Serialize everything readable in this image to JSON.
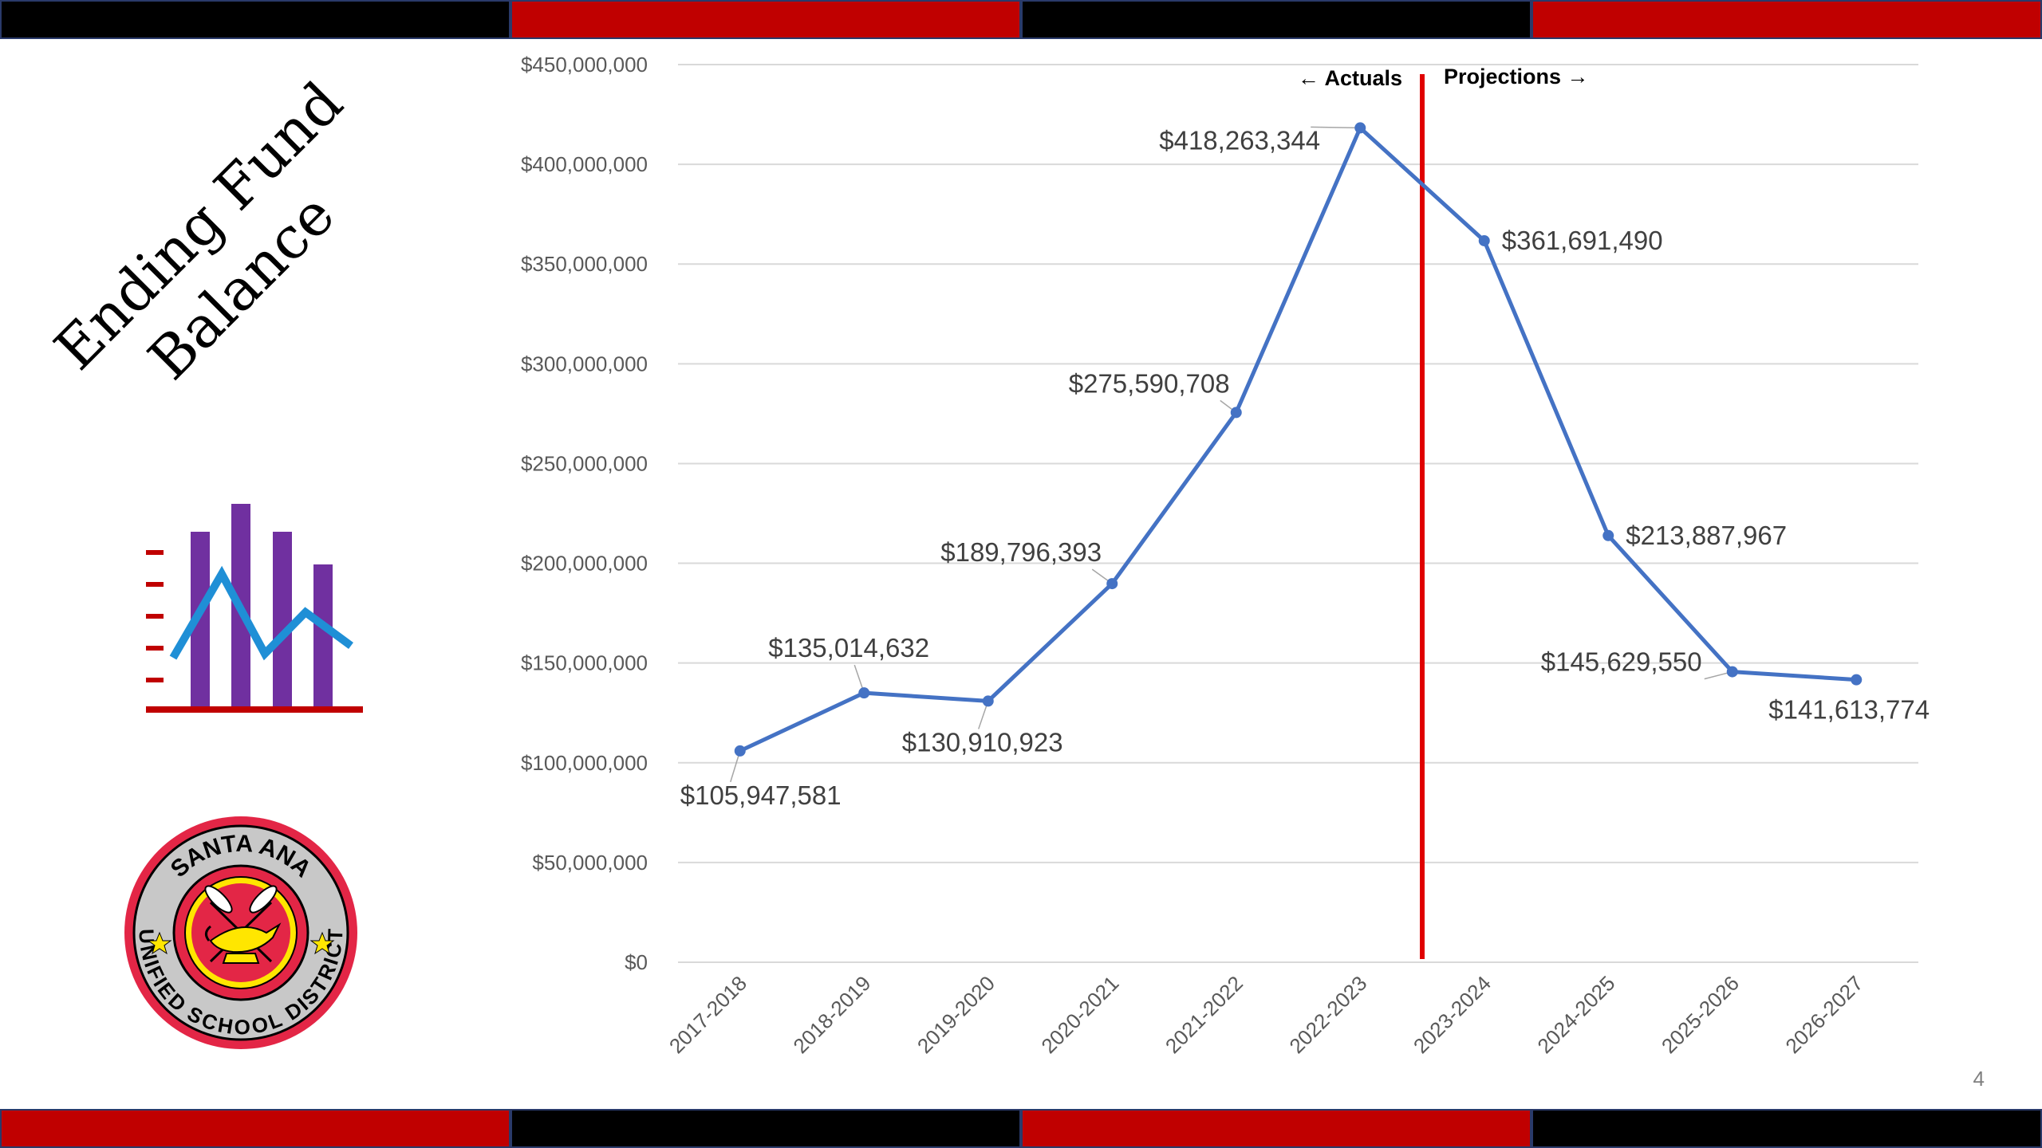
{
  "slide": {
    "title_line1": "Ending Fund",
    "title_line2": "Balance",
    "page_number": "4",
    "logo_text_top": "SANTA ANA",
    "logo_text_bottom": "UNIFIED SCHOOL DISTRICT",
    "colors": {
      "stripe_red": "#c00000",
      "stripe_black": "#000000",
      "line": "#4472c4",
      "divider": "#e00000",
      "icon_bars": "#7030a0",
      "icon_line": "#1f8fd6",
      "logo_red": "#e32646"
    }
  },
  "chart_data": {
    "type": "line",
    "title": "",
    "xlabel": "",
    "ylabel": "",
    "ylim": [
      0,
      450000000
    ],
    "y_ticks": [
      "$0",
      "$50,000,000",
      "$100,000,000",
      "$150,000,000",
      "$200,000,000",
      "$250,000,000",
      "$300,000,000",
      "$350,000,000",
      "$400,000,000",
      "$450,000,000"
    ],
    "categories": [
      "2017-2018",
      "2018-2019",
      "2019-2020",
      "2020-2021",
      "2021-2022",
      "2022-2023",
      "2023-2024",
      "2024-2025",
      "2025-2026",
      "2026-2027"
    ],
    "values": [
      105947581,
      135014632,
      130910923,
      189796393,
      275590708,
      418263344,
      361691490,
      213887967,
      145629550,
      141613774
    ],
    "data_labels": [
      "$105,947,581",
      "$135,014,632",
      "$130,910,923",
      "$189,796,393",
      "$275,590,708",
      "$418,263,344",
      "$361,691,490",
      "$213,887,967",
      "$145,629,550",
      "$141,613,774"
    ],
    "grid": true,
    "legend": "none",
    "annotations": {
      "left": "← Actuals",
      "right": "Projections →"
    }
  }
}
